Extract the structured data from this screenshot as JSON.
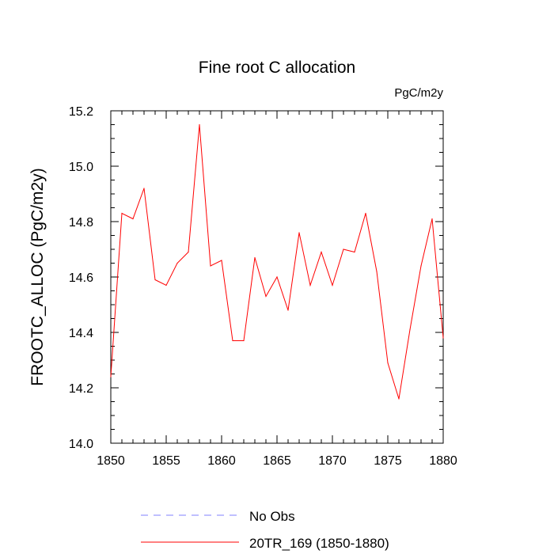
{
  "chart_data": {
    "type": "line",
    "title": "Fine root C allocation",
    "units_label": "PgC/m2y",
    "xlabel": "",
    "ylabel": "FROOTC_ALLOC  (PgC/m2y)",
    "xlim": [
      1850,
      1880
    ],
    "ylim": [
      14.0,
      15.2
    ],
    "x_major_ticks": [
      1850,
      1855,
      1860,
      1865,
      1870,
      1875,
      1880
    ],
    "x_tick_labels": [
      "1850",
      "1855",
      "1860",
      "1865",
      "1870",
      "1875",
      "1880"
    ],
    "y_major_ticks": [
      14.0,
      14.2,
      14.4,
      14.6,
      14.8,
      15.0,
      15.2
    ],
    "y_tick_labels": [
      "14.0",
      "14.2",
      "14.4",
      "14.6",
      "14.8",
      "15.0",
      "15.2"
    ],
    "grid": false,
    "legend_position": "bottom",
    "series": [
      {
        "name": "20TR_169 (1850-1880)",
        "color": "#ff0000",
        "style": "solid",
        "x": [
          1850,
          1851,
          1852,
          1853,
          1854,
          1855,
          1856,
          1857,
          1858,
          1859,
          1860,
          1861,
          1862,
          1863,
          1864,
          1865,
          1866,
          1867,
          1868,
          1869,
          1870,
          1871,
          1872,
          1873,
          1874,
          1875,
          1876,
          1877,
          1878,
          1879,
          1880
        ],
        "values": [
          14.24,
          14.83,
          14.81,
          14.92,
          14.59,
          14.57,
          14.65,
          14.69,
          15.15,
          14.64,
          14.66,
          14.37,
          14.37,
          14.67,
          14.53,
          14.6,
          14.48,
          14.76,
          14.57,
          14.69,
          14.57,
          14.7,
          14.69,
          14.83,
          14.62,
          14.29,
          14.16,
          14.41,
          14.64,
          14.81,
          14.38
        ]
      }
    ],
    "legend": [
      {
        "name": "No Obs",
        "color": "#8080ff",
        "style": "dashed"
      },
      {
        "name": "20TR_169 (1850-1880)",
        "color": "#ff0000",
        "style": "solid"
      }
    ]
  }
}
